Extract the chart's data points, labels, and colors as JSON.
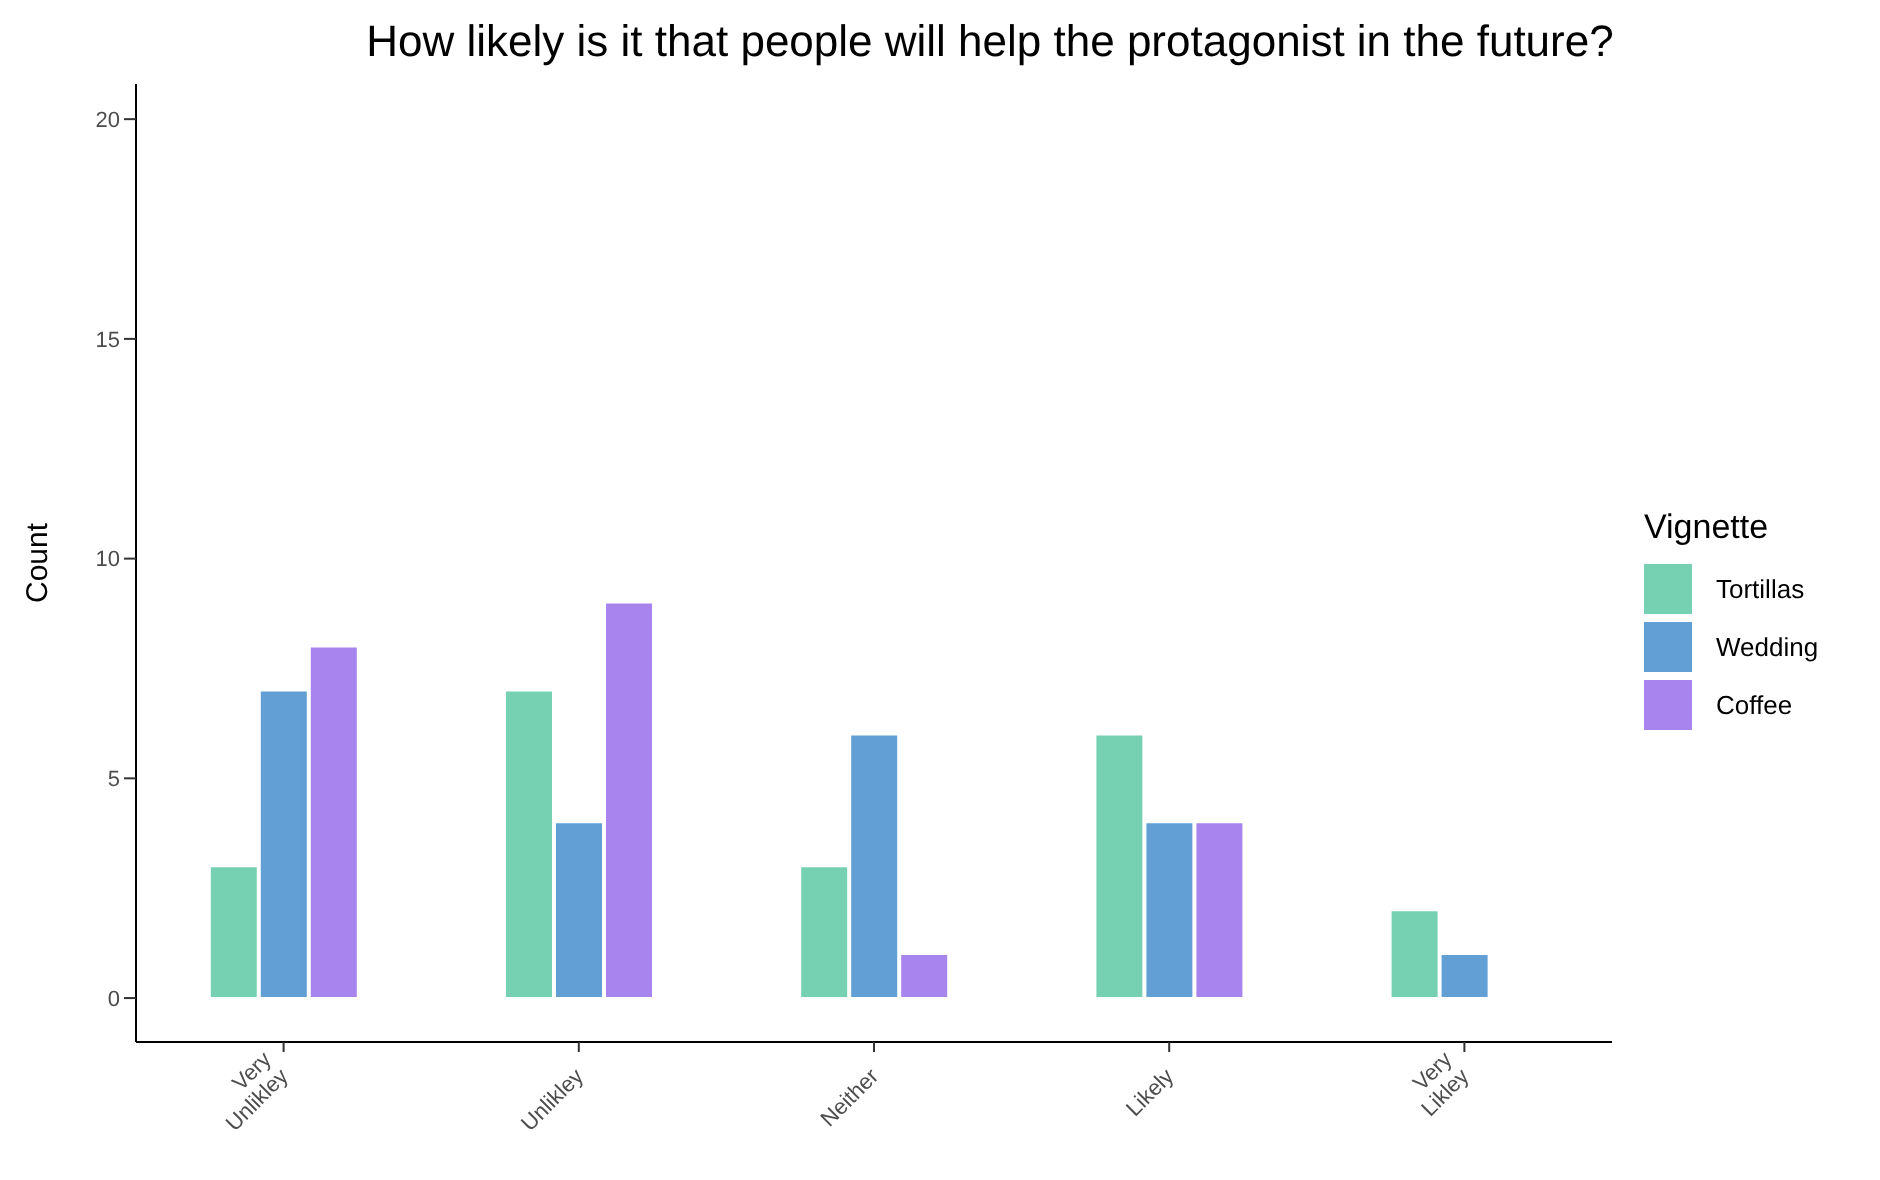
{
  "chart_data": {
    "type": "bar",
    "title": "How likely is it that people will help the protagonist in the future?",
    "ylabel": "Count",
    "legend_title": "Vignette",
    "categories": [
      "Very\nUnlikley",
      "Unlikley",
      "Neither",
      "Likely",
      "Very\nLikley"
    ],
    "series": [
      {
        "name": "Tortillas",
        "color": "#76d1b3",
        "values": [
          3,
          7,
          3,
          6,
          2
        ]
      },
      {
        "name": "Wedding",
        "color": "#619fd4",
        "values": [
          7,
          4,
          6,
          4,
          1
        ]
      },
      {
        "name": "Coffee",
        "color": "#a784ee",
        "values": [
          8,
          9,
          1,
          4,
          null
        ]
      }
    ],
    "ylim": [
      -1,
      20.8
    ],
    "yticks": [
      0,
      5,
      10,
      15,
      20
    ],
    "legend": "right"
  }
}
